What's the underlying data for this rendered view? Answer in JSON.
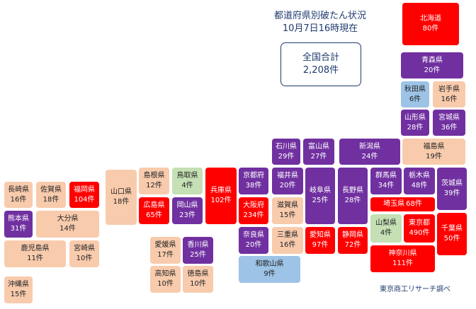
{
  "title": {
    "line1": "都道府県別破たん状況",
    "line2": "10月7日16時現在"
  },
  "total": {
    "label": "全国合計",
    "value": "2,208件"
  },
  "credit": "東京商工リサーチ調べ",
  "legend_colors": {
    "red": "#ff0000",
    "purple": "#7030a0",
    "peach": "#f8cbad",
    "green": "#c5e0b4",
    "blue": "#9dc3e6"
  },
  "prefectures": [
    {
      "name": "北海道",
      "count": "80件"
    },
    {
      "name": "青森県",
      "count": "20件"
    },
    {
      "name": "秋田県",
      "count": "6件"
    },
    {
      "name": "岩手県",
      "count": "16件"
    },
    {
      "name": "山形県",
      "count": "28件"
    },
    {
      "name": "宮城県",
      "count": "36件"
    },
    {
      "name": "石川県",
      "count": "29件"
    },
    {
      "name": "富山県",
      "count": "27件"
    },
    {
      "name": "新潟県",
      "count": "24件"
    },
    {
      "name": "福島県",
      "count": "19件"
    },
    {
      "name": "長崎県",
      "count": "16件"
    },
    {
      "name": "佐賀県",
      "count": "18件"
    },
    {
      "name": "福岡県",
      "count": "104件"
    },
    {
      "name": "山口県",
      "count": "18件"
    },
    {
      "name": "島根県",
      "count": "12件"
    },
    {
      "name": "鳥取県",
      "count": "4件"
    },
    {
      "name": "兵庫県",
      "count": "102件"
    },
    {
      "name": "京都府",
      "count": "38件"
    },
    {
      "name": "福井県",
      "count": "20件"
    },
    {
      "name": "岐阜県",
      "count": "25件"
    },
    {
      "name": "長野県",
      "count": "28件"
    },
    {
      "name": "群馬県",
      "count": "34件"
    },
    {
      "name": "栃木県",
      "count": "48件"
    },
    {
      "name": "茨城県",
      "count": "39件"
    },
    {
      "name": "熊本県",
      "count": "31件"
    },
    {
      "name": "大分県",
      "count": "14件"
    },
    {
      "name": "広島県",
      "count": "65件"
    },
    {
      "name": "岡山県",
      "count": "23件"
    },
    {
      "name": "大阪府",
      "count": "234件"
    },
    {
      "name": "滋賀県",
      "count": "15件"
    },
    {
      "name": "埼玉県",
      "count": "68件"
    },
    {
      "name": "鹿児島県",
      "count": "11件"
    },
    {
      "name": "宮崎県",
      "count": "10件"
    },
    {
      "name": "愛媛県",
      "count": "17件"
    },
    {
      "name": "香川県",
      "count": "25件"
    },
    {
      "name": "奈良県",
      "count": "20件"
    },
    {
      "name": "三重県",
      "count": "16件"
    },
    {
      "name": "愛知県",
      "count": "97件"
    },
    {
      "name": "静岡県",
      "count": "72件"
    },
    {
      "name": "山梨県",
      "count": "4件"
    },
    {
      "name": "東京都",
      "count": "490件"
    },
    {
      "name": "千葉県",
      "count": "50件"
    },
    {
      "name": "高知県",
      "count": "10件"
    },
    {
      "name": "徳島県",
      "count": "10件"
    },
    {
      "name": "和歌山県",
      "count": "9件"
    },
    {
      "name": "神奈川県",
      "count": "111件"
    },
    {
      "name": "沖縄県",
      "count": "15件"
    }
  ]
}
